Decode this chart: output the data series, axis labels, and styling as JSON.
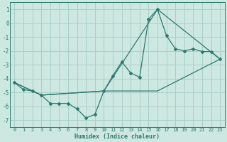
{
  "xlabel": "Humidex (Indice chaleur)",
  "bg_color": "#cce8e0",
  "grid_color": "#aad0c8",
  "line_color": "#2d7a6e",
  "xlim": [
    -0.5,
    23.5
  ],
  "ylim": [
    -7.5,
    1.5
  ],
  "yticks": [
    1,
    0,
    -1,
    -2,
    -3,
    -4,
    -5,
    -6,
    -7
  ],
  "xticks": [
    0,
    1,
    2,
    3,
    4,
    5,
    6,
    7,
    8,
    9,
    10,
    11,
    12,
    13,
    14,
    15,
    16,
    17,
    18,
    19,
    20,
    21,
    22,
    23
  ],
  "series_main": {
    "x": [
      0,
      1,
      2,
      3,
      4,
      5,
      6,
      7,
      8,
      9,
      10,
      11,
      12,
      13,
      14,
      15,
      16,
      17,
      18,
      19,
      20,
      21,
      22,
      23
    ],
    "y": [
      -4.3,
      -4.8,
      -4.9,
      -5.2,
      -5.8,
      -5.8,
      -5.8,
      -6.2,
      -6.85,
      -6.6,
      -4.9,
      -3.8,
      -2.8,
      -3.6,
      -3.9,
      0.3,
      1.0,
      -0.9,
      -1.85,
      -2.0,
      -1.85,
      -2.05,
      -2.05,
      -2.6
    ]
  },
  "series_line1": {
    "x": [
      0,
      3,
      10,
      16,
      23
    ],
    "y": [
      -4.3,
      -5.2,
      -4.9,
      1.0,
      -2.6
    ]
  },
  "series_line2": {
    "x": [
      0,
      3,
      10,
      16,
      23
    ],
    "y": [
      -4.3,
      -5.2,
      -4.9,
      -4.9,
      -2.6
    ]
  }
}
